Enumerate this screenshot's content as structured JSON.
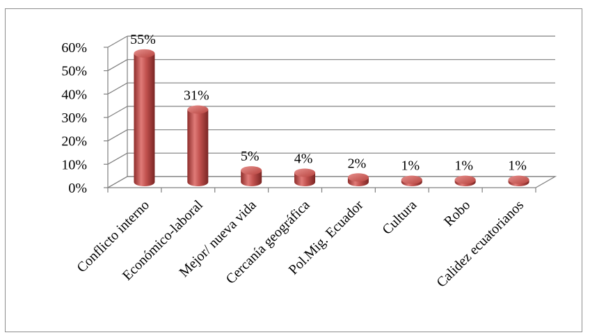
{
  "chart_data": {
    "type": "bar",
    "style": "3d-cylinder",
    "bar_color": "#c0504d",
    "categories": [
      "Conflicto interno",
      "Económico-laboral",
      "Mejor/ nueva vida",
      "Cercanía geográfica",
      "Pol.Mig. Ecuador",
      "Cultura",
      "Robo",
      "Calidez ecuatorianos"
    ],
    "values": [
      55,
      31,
      5,
      4,
      2,
      1,
      1,
      1
    ],
    "data_labels": [
      "55%",
      "31%",
      "5%",
      "4%",
      "2%",
      "1%",
      "1%",
      "1%"
    ],
    "y_ticks": [
      "0%",
      "10%",
      "20%",
      "30%",
      "40%",
      "50%",
      "60%"
    ],
    "ylim": [
      0,
      60
    ],
    "grid": true,
    "legend": false,
    "title": "",
    "xlabel": "",
    "ylabel": ""
  }
}
